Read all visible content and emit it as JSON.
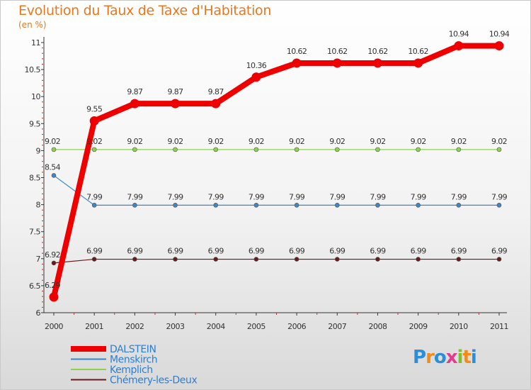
{
  "chart_data": {
    "type": "line",
    "title": "Evolution du Taux de Taxe d'Habitation",
    "subtitle": "(en %)",
    "xlabel": "",
    "ylabel": "",
    "x": [
      "2000",
      "2001",
      "2002",
      "2003",
      "2004",
      "2005",
      "2006",
      "2007",
      "2008",
      "2009",
      "2010",
      "2011"
    ],
    "ylim": [
      6,
      11
    ],
    "yticks": [
      6,
      6.5,
      7,
      7.5,
      8,
      8.5,
      9,
      9.5,
      10,
      10.5,
      11
    ],
    "ytick_labels": [
      "6",
      "6.5",
      "7",
      "7.5",
      "8",
      "8.5",
      "9",
      "9.5",
      "10",
      "10.5",
      "11"
    ],
    "grid": false,
    "legend_position": "bottom-left",
    "series": [
      {
        "name": "Chémery-les-Deux",
        "color": "#6b1a1a",
        "emphasis": false,
        "values": [
          6.92,
          6.99,
          6.99,
          6.99,
          6.99,
          6.99,
          6.99,
          6.99,
          6.99,
          6.99,
          6.99,
          6.99
        ],
        "labels": [
          "6.92",
          "6.99",
          "6.99",
          "6.99",
          "6.99",
          "6.99",
          "6.99",
          "6.99",
          "6.99",
          "6.99",
          "6.99",
          "6.99"
        ]
      },
      {
        "name": "Kemplich",
        "color": "#8fd14f",
        "emphasis": false,
        "values": [
          9.02,
          9.02,
          9.02,
          9.02,
          9.02,
          9.02,
          9.02,
          9.02,
          9.02,
          9.02,
          9.02,
          9.02
        ],
        "labels": [
          "9.02",
          "9.02",
          "9.02",
          "9.02",
          "9.02",
          "9.02",
          "9.02",
          "9.02",
          "9.02",
          "9.02",
          "9.02",
          "9.02"
        ]
      },
      {
        "name": "Menskirch",
        "color": "#3a86c8",
        "emphasis": false,
        "values": [
          8.54,
          7.99,
          7.99,
          7.99,
          7.99,
          7.99,
          7.99,
          7.99,
          7.99,
          7.99,
          7.99,
          7.99
        ],
        "labels": [
          "8.54",
          "7.99",
          "7.99",
          "7.99",
          "7.99",
          "7.99",
          "7.99",
          "7.99",
          "7.99",
          "7.99",
          "7.99",
          "7.99"
        ]
      },
      {
        "name": "DALSTEIN",
        "color": "#ee0000",
        "emphasis": true,
        "values": [
          6.29,
          9.55,
          9.87,
          9.87,
          9.87,
          10.36,
          10.62,
          10.62,
          10.62,
          10.62,
          10.94,
          10.94
        ],
        "labels": [
          "6.29",
          "9.55",
          "9.87",
          "9.87",
          "9.87",
          "10.36",
          "10.62",
          "10.62",
          "10.62",
          "10.62",
          "10.94",
          "10.94"
        ]
      }
    ],
    "legend_order": [
      "DALSTEIN",
      "Menskirch",
      "Kemplich",
      "Chémery-les-Deux"
    ],
    "brand": "Proxiti"
  }
}
